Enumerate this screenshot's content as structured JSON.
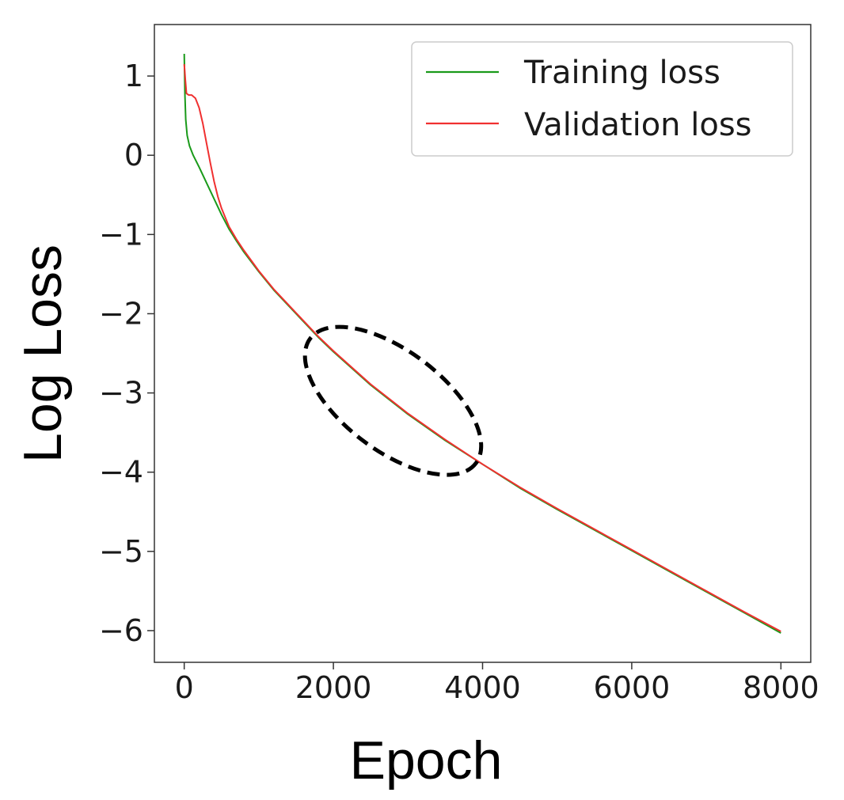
{
  "chart_data": {
    "type": "line",
    "title": "",
    "xlabel": "Epoch",
    "ylabel": "Log Loss",
    "xlim": [
      -400,
      8400
    ],
    "ylim": [
      -6.4,
      1.65
    ],
    "xticks": [
      0,
      2000,
      4000,
      6000,
      8000
    ],
    "xtick_labels": [
      "0",
      "2000",
      "4000",
      "6000",
      "8000"
    ],
    "yticks": [
      1,
      0,
      -1,
      -2,
      -3,
      -4,
      -5,
      -6
    ],
    "ytick_labels": [
      "1",
      "0",
      "−1",
      "−2",
      "−3",
      "−4",
      "−5",
      "−6"
    ],
    "grid": false,
    "legend_position": "top-right",
    "series": [
      {
        "name": "Training loss",
        "color": "#1a9a1a",
        "x": [
          0,
          10,
          20,
          40,
          70,
          120,
          200,
          300,
          400,
          500,
          600,
          700,
          800,
          1000,
          1200,
          1500,
          1800,
          2000,
          2500,
          3000,
          3500,
          4000,
          4500,
          5000,
          5500,
          6000,
          6500,
          7000,
          7500,
          8000
        ],
        "y": [
          1.28,
          0.75,
          0.45,
          0.25,
          0.12,
          0.0,
          -0.15,
          -0.35,
          -0.55,
          -0.75,
          -0.93,
          -1.08,
          -1.22,
          -1.47,
          -1.7,
          -2.0,
          -2.3,
          -2.48,
          -2.9,
          -3.27,
          -3.6,
          -3.9,
          -4.2,
          -4.47,
          -4.73,
          -4.99,
          -5.25,
          -5.51,
          -5.77,
          -6.03
        ]
      },
      {
        "name": "Validation loss",
        "color": "#f03030",
        "x": [
          0,
          15,
          30,
          60,
          100,
          150,
          200,
          250,
          300,
          350,
          400,
          450,
          500,
          600,
          700,
          800,
          1000,
          1200,
          1500,
          1800,
          2000,
          2500,
          3000,
          3500,
          4000,
          4500,
          5000,
          5500,
          6000,
          6500,
          7000,
          7500,
          8000
        ],
        "y": [
          1.15,
          0.95,
          0.78,
          0.76,
          0.76,
          0.72,
          0.6,
          0.4,
          0.15,
          -0.1,
          -0.33,
          -0.52,
          -0.67,
          -0.9,
          -1.06,
          -1.2,
          -1.46,
          -1.69,
          -1.99,
          -2.29,
          -2.47,
          -2.89,
          -3.26,
          -3.59,
          -3.9,
          -4.19,
          -4.46,
          -4.72,
          -4.98,
          -5.24,
          -5.5,
          -5.76,
          -6.01
        ]
      }
    ],
    "annotations": [
      {
        "type": "dashed-ellipse",
        "center": [
          2800,
          -3.1
        ],
        "color": "#000000"
      }
    ]
  }
}
